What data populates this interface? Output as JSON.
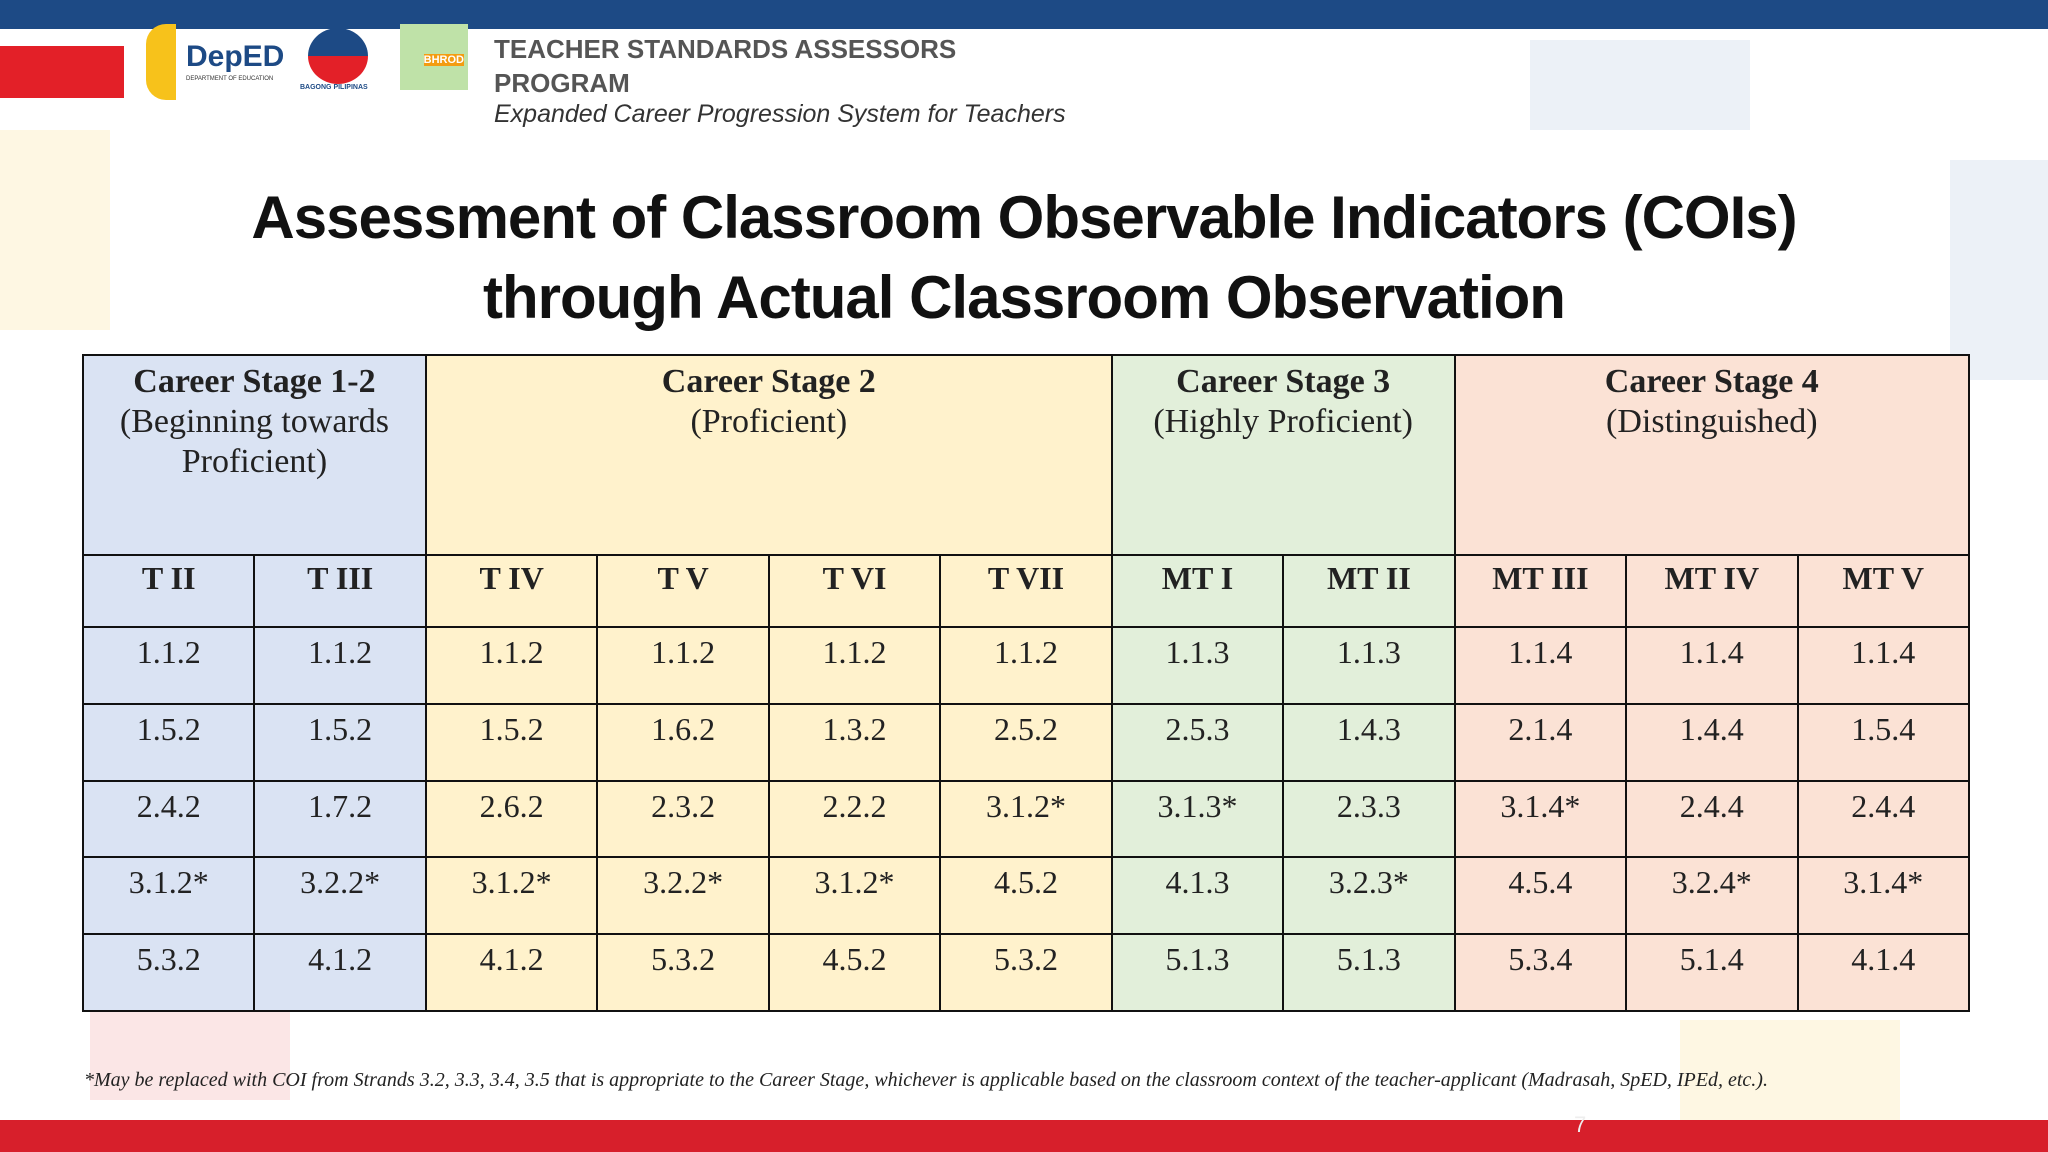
{
  "header": {
    "logos": [
      "DepED",
      "DEPARTMENT OF EDUCATION",
      "BAGONG PILIPINAS",
      "BHROD"
    ],
    "title_lines": [
      "TEACHER STANDARDS ASSESSORS",
      "PROGRAM"
    ],
    "subtitle": "Expanded Career Progression System for Teachers"
  },
  "slide": {
    "title_lines": [
      "Assessment of Classroom Observable Indicators (COIs)",
      "through Actual Classroom Observation"
    ],
    "page_number": "7"
  },
  "table": {
    "stages": [
      {
        "title": "Career Stage 1-2",
        "subtitle": "(Beginning towards Proficient)",
        "span": 2,
        "color": "#dae3f3"
      },
      {
        "title": "Career Stage 2",
        "subtitle": "(Proficient)",
        "span": 4,
        "color": "#fff2cc"
      },
      {
        "title": "Career Stage 3",
        "subtitle": "(Highly Proficient)",
        "span": 2,
        "color": "#e2efda"
      },
      {
        "title": "Career Stage 4",
        "subtitle": "(Distinguished)",
        "span": 3,
        "color": "#fbe2d5"
      }
    ],
    "columns": [
      "T II",
      "T III",
      "T IV",
      "T V",
      "T VI",
      "T VII",
      "MT I",
      "MT II",
      "MT III",
      "MT IV",
      "MT V"
    ],
    "rows": [
      [
        "1.1.2",
        "1.1.2",
        "1.1.2",
        "1.1.2",
        "1.1.2",
        "1.1.2",
        "1.1.3",
        "1.1.3",
        "1.1.4",
        "1.1.4",
        "1.1.4"
      ],
      [
        "1.5.2",
        "1.5.2",
        "1.5.2",
        "1.6.2",
        "1.3.2",
        "2.5.2",
        "2.5.3",
        "1.4.3",
        "2.1.4",
        "1.4.4",
        "1.5.4"
      ],
      [
        "2.4.2",
        "1.7.2",
        "2.6.2",
        "2.3.2",
        "2.2.2",
        "3.1.2*",
        "3.1.3*",
        "2.3.3",
        "3.1.4*",
        "2.4.4",
        "2.4.4"
      ],
      [
        "3.1.2*",
        "3.2.2*",
        "3.1.2*",
        "3.2.2*",
        "3.1.2*",
        "4.5.2",
        "4.1.3",
        "3.2.3*",
        "4.5.4",
        "3.2.4*",
        "3.1.4*"
      ],
      [
        "5.3.2",
        "4.1.2",
        "4.1.2",
        "5.3.2",
        "4.5.2",
        "5.3.2",
        "5.1.3",
        "5.1.3",
        "5.3.4",
        "5.1.4",
        "4.1.4"
      ]
    ]
  },
  "footnote": "*May be replaced with COI from Strands 3.2, 3.3, 3.4, 3.5 that is appropriate to the Career Stage, whichever is applicable based on the classroom context of the teacher-applicant (Madrasah, SpED, IPEd, etc.)."
}
